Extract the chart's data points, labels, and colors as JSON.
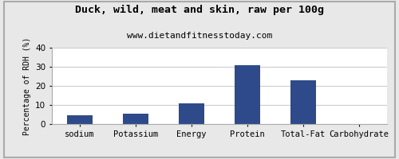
{
  "title": "Duck, wild, meat and skin, raw per 100g",
  "subtitle": "www.dietandfitnesstoday.com",
  "categories": [
    "sodium",
    "Potassium",
    "Energy",
    "Protein",
    "Total-Fat",
    "Carbohydrate"
  ],
  "values": [
    4.5,
    5.5,
    11,
    31,
    23,
    0
  ],
  "bar_color": "#2e4a8a",
  "ylabel": "Percentage of RDH (%)",
  "ylim": [
    0,
    40
  ],
  "yticks": [
    0,
    10,
    20,
    30,
    40
  ],
  "title_fontsize": 9.5,
  "subtitle_fontsize": 8,
  "ylabel_fontsize": 7,
  "xlabel_fontsize": 7.5,
  "tick_fontsize": 7.5,
  "bg_color": "#e8e8e8",
  "plot_bg_color": "#ffffff",
  "grid_color": "#cccccc",
  "bar_width": 0.45
}
